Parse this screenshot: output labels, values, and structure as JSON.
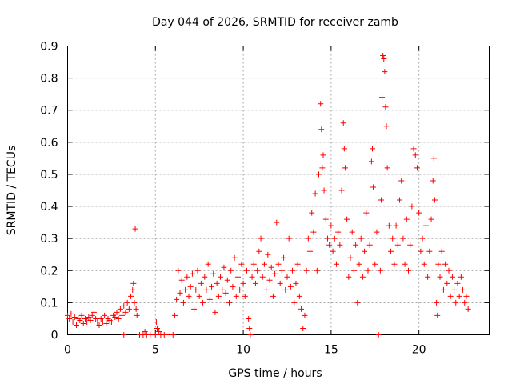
{
  "chart_data": {
    "type": "scatter",
    "title": "Day 044 of 2026, SRMTID for receiver zamb",
    "xlabel": "GPS time / hours",
    "ylabel": "SRMTID / TECUs",
    "xlim": [
      0,
      24
    ],
    "ylim": [
      0,
      0.9
    ],
    "xticks": [
      0,
      5,
      10,
      15,
      20
    ],
    "yticks": [
      0,
      0.1,
      0.2,
      0.3,
      0.4,
      0.5,
      0.6,
      0.7,
      0.8,
      0.9
    ],
    "xtick_labels": [
      "0",
      "5",
      "10",
      "15",
      "20"
    ],
    "ytick_labels": [
      "0",
      "0.1",
      "0.2",
      "0.3",
      "0.4",
      "0.5",
      "0.6",
      "0.7",
      "0.8",
      "0.9"
    ],
    "grid": true,
    "marker": "+",
    "color": "#ff0000",
    "series": [
      {
        "name": "SRMTID",
        "points": [
          [
            0.0,
            0.06
          ],
          [
            0.1,
            0.05
          ],
          [
            0.2,
            0.065
          ],
          [
            0.3,
            0.04
          ],
          [
            0.4,
            0.055
          ],
          [
            0.5,
            0.03
          ],
          [
            0.6,
            0.05
          ],
          [
            0.7,
            0.045
          ],
          [
            0.8,
            0.06
          ],
          [
            0.9,
            0.035
          ],
          [
            1.0,
            0.05
          ],
          [
            1.1,
            0.04
          ],
          [
            1.2,
            0.055
          ],
          [
            1.3,
            0.045
          ],
          [
            1.4,
            0.06
          ],
          [
            1.5,
            0.07
          ],
          [
            1.6,
            0.05
          ],
          [
            1.7,
            0.04
          ],
          [
            1.8,
            0.03
          ],
          [
            1.9,
            0.05
          ],
          [
            2.0,
            0.04
          ],
          [
            2.1,
            0.06
          ],
          [
            2.2,
            0.035
          ],
          [
            2.3,
            0.05
          ],
          [
            2.4,
            0.045
          ],
          [
            2.5,
            0.04
          ],
          [
            2.6,
            0.06
          ],
          [
            2.7,
            0.055
          ],
          [
            2.8,
            0.07
          ],
          [
            2.9,
            0.05
          ],
          [
            3.0,
            0.08
          ],
          [
            3.1,
            0.06
          ],
          [
            3.2,
            0.09
          ],
          [
            3.3,
            0.07
          ],
          [
            3.4,
            0.1
          ],
          [
            3.5,
            0.08
          ],
          [
            3.6,
            0.12
          ],
          [
            3.7,
            0.14
          ],
          [
            3.75,
            0.16
          ],
          [
            3.8,
            0.1
          ],
          [
            3.85,
            0.33
          ],
          [
            3.9,
            0.08
          ],
          [
            3.95,
            0.06
          ],
          [
            3.2,
            0.0
          ],
          [
            4.1,
            0.0
          ],
          [
            4.3,
            0.0
          ],
          [
            4.4,
            0.01
          ],
          [
            4.5,
            0.0
          ],
          [
            4.7,
            0.0
          ],
          [
            5.0,
            0.0
          ],
          [
            5.05,
            0.04
          ],
          [
            5.1,
            0.02
          ],
          [
            5.2,
            0.01
          ],
          [
            5.3,
            0.0
          ],
          [
            5.5,
            0.0
          ],
          [
            5.6,
            0.0
          ],
          [
            6.0,
            0.0
          ],
          [
            6.1,
            0.06
          ],
          [
            6.2,
            0.11
          ],
          [
            6.3,
            0.2
          ],
          [
            6.4,
            0.13
          ],
          [
            6.5,
            0.17
          ],
          [
            6.6,
            0.1
          ],
          [
            6.7,
            0.14
          ],
          [
            6.8,
            0.18
          ],
          [
            6.9,
            0.12
          ],
          [
            7.0,
            0.15
          ],
          [
            7.1,
            0.19
          ],
          [
            7.2,
            0.08
          ],
          [
            7.3,
            0.14
          ],
          [
            7.4,
            0.2
          ],
          [
            7.5,
            0.12
          ],
          [
            7.6,
            0.16
          ],
          [
            7.7,
            0.1
          ],
          [
            7.8,
            0.18
          ],
          [
            7.9,
            0.14
          ],
          [
            8.0,
            0.22
          ],
          [
            8.1,
            0.11
          ],
          [
            8.2,
            0.15
          ],
          [
            8.3,
            0.19
          ],
          [
            8.4,
            0.07
          ],
          [
            8.5,
            0.16
          ],
          [
            8.6,
            0.12
          ],
          [
            8.7,
            0.18
          ],
          [
            8.8,
            0.14
          ],
          [
            8.9,
            0.21
          ],
          [
            9.0,
            0.13
          ],
          [
            9.1,
            0.17
          ],
          [
            9.2,
            0.1
          ],
          [
            9.3,
            0.2
          ],
          [
            9.4,
            0.15
          ],
          [
            9.5,
            0.24
          ],
          [
            9.6,
            0.12
          ],
          [
            9.7,
            0.18
          ],
          [
            9.8,
            0.14
          ],
          [
            9.9,
            0.22
          ],
          [
            10.0,
            0.16
          ],
          [
            10.1,
            0.12
          ],
          [
            10.2,
            0.2
          ],
          [
            10.3,
            0.05
          ],
          [
            10.35,
            0.02
          ],
          [
            10.4,
            0.0
          ],
          [
            10.5,
            0.18
          ],
          [
            10.6,
            0.22
          ],
          [
            10.7,
            0.16
          ],
          [
            10.8,
            0.2
          ],
          [
            10.9,
            0.26
          ],
          [
            11.0,
            0.3
          ],
          [
            11.1,
            0.18
          ],
          [
            11.2,
            0.22
          ],
          [
            11.3,
            0.14
          ],
          [
            11.4,
            0.25
          ],
          [
            11.5,
            0.17
          ],
          [
            11.6,
            0.21
          ],
          [
            11.7,
            0.12
          ],
          [
            11.8,
            0.19
          ],
          [
            11.9,
            0.35
          ],
          [
            12.0,
            0.22
          ],
          [
            12.1,
            0.16
          ],
          [
            12.2,
            0.2
          ],
          [
            12.3,
            0.24
          ],
          [
            12.4,
            0.14
          ],
          [
            12.5,
            0.18
          ],
          [
            12.6,
            0.3
          ],
          [
            12.7,
            0.15
          ],
          [
            12.8,
            0.2
          ],
          [
            12.9,
            0.1
          ],
          [
            13.0,
            0.16
          ],
          [
            13.1,
            0.22
          ],
          [
            13.2,
            0.12
          ],
          [
            13.3,
            0.08
          ],
          [
            13.4,
            0.02
          ],
          [
            13.5,
            0.06
          ],
          [
            13.6,
            0.2
          ],
          [
            13.7,
            0.3
          ],
          [
            13.8,
            0.26
          ],
          [
            13.9,
            0.38
          ],
          [
            14.0,
            0.32
          ],
          [
            14.1,
            0.44
          ],
          [
            14.2,
            0.2
          ],
          [
            14.3,
            0.5
          ],
          [
            14.4,
            0.72
          ],
          [
            14.45,
            0.64
          ],
          [
            14.5,
            0.52
          ],
          [
            14.55,
            0.56
          ],
          [
            14.6,
            0.45
          ],
          [
            14.7,
            0.36
          ],
          [
            14.8,
            0.3
          ],
          [
            14.9,
            0.28
          ],
          [
            15.0,
            0.34
          ],
          [
            15.1,
            0.26
          ],
          [
            15.2,
            0.3
          ],
          [
            15.3,
            0.22
          ],
          [
            15.4,
            0.32
          ],
          [
            15.5,
            0.28
          ],
          [
            15.6,
            0.45
          ],
          [
            15.7,
            0.66
          ],
          [
            15.75,
            0.58
          ],
          [
            15.8,
            0.52
          ],
          [
            15.9,
            0.36
          ],
          [
            16.0,
            0.18
          ],
          [
            16.1,
            0.24
          ],
          [
            16.2,
            0.32
          ],
          [
            16.3,
            0.2
          ],
          [
            16.4,
            0.28
          ],
          [
            16.5,
            0.1
          ],
          [
            16.6,
            0.22
          ],
          [
            16.7,
            0.3
          ],
          [
            16.8,
            0.18
          ],
          [
            16.9,
            0.26
          ],
          [
            17.0,
            0.38
          ],
          [
            17.1,
            0.2
          ],
          [
            17.2,
            0.28
          ],
          [
            17.3,
            0.54
          ],
          [
            17.35,
            0.58
          ],
          [
            17.4,
            0.46
          ],
          [
            17.5,
            0.22
          ],
          [
            17.6,
            0.32
          ],
          [
            17.7,
            0.0
          ],
          [
            17.8,
            0.2
          ],
          [
            17.85,
            0.42
          ],
          [
            17.9,
            0.74
          ],
          [
            17.95,
            0.87
          ],
          [
            18.0,
            0.86
          ],
          [
            18.05,
            0.82
          ],
          [
            18.1,
            0.71
          ],
          [
            18.15,
            0.65
          ],
          [
            18.2,
            0.52
          ],
          [
            18.3,
            0.34
          ],
          [
            18.4,
            0.26
          ],
          [
            18.5,
            0.3
          ],
          [
            18.6,
            0.22
          ],
          [
            18.7,
            0.34
          ],
          [
            18.8,
            0.28
          ],
          [
            18.9,
            0.42
          ],
          [
            19.0,
            0.48
          ],
          [
            19.1,
            0.3
          ],
          [
            19.2,
            0.22
          ],
          [
            19.3,
            0.36
          ],
          [
            19.4,
            0.2
          ],
          [
            19.5,
            0.28
          ],
          [
            19.6,
            0.4
          ],
          [
            19.7,
            0.58
          ],
          [
            19.8,
            0.56
          ],
          [
            19.9,
            0.52
          ],
          [
            20.0,
            0.38
          ],
          [
            20.1,
            0.26
          ],
          [
            20.2,
            0.3
          ],
          [
            20.3,
            0.22
          ],
          [
            20.4,
            0.34
          ],
          [
            20.5,
            0.18
          ],
          [
            20.6,
            0.26
          ],
          [
            20.7,
            0.36
          ],
          [
            20.8,
            0.48
          ],
          [
            20.85,
            0.55
          ],
          [
            20.9,
            0.42
          ],
          [
            21.0,
            0.1
          ],
          [
            21.05,
            0.06
          ],
          [
            21.1,
            0.22
          ],
          [
            21.2,
            0.18
          ],
          [
            21.3,
            0.26
          ],
          [
            21.4,
            0.14
          ],
          [
            21.5,
            0.22
          ],
          [
            21.6,
            0.16
          ],
          [
            21.7,
            0.2
          ],
          [
            21.8,
            0.12
          ],
          [
            21.9,
            0.18
          ],
          [
            22.0,
            0.14
          ],
          [
            22.1,
            0.1
          ],
          [
            22.2,
            0.16
          ],
          [
            22.3,
            0.12
          ],
          [
            22.4,
            0.18
          ],
          [
            22.5,
            0.14
          ],
          [
            22.6,
            0.1
          ],
          [
            22.7,
            0.12
          ],
          [
            22.8,
            0.08
          ]
        ]
      }
    ]
  }
}
